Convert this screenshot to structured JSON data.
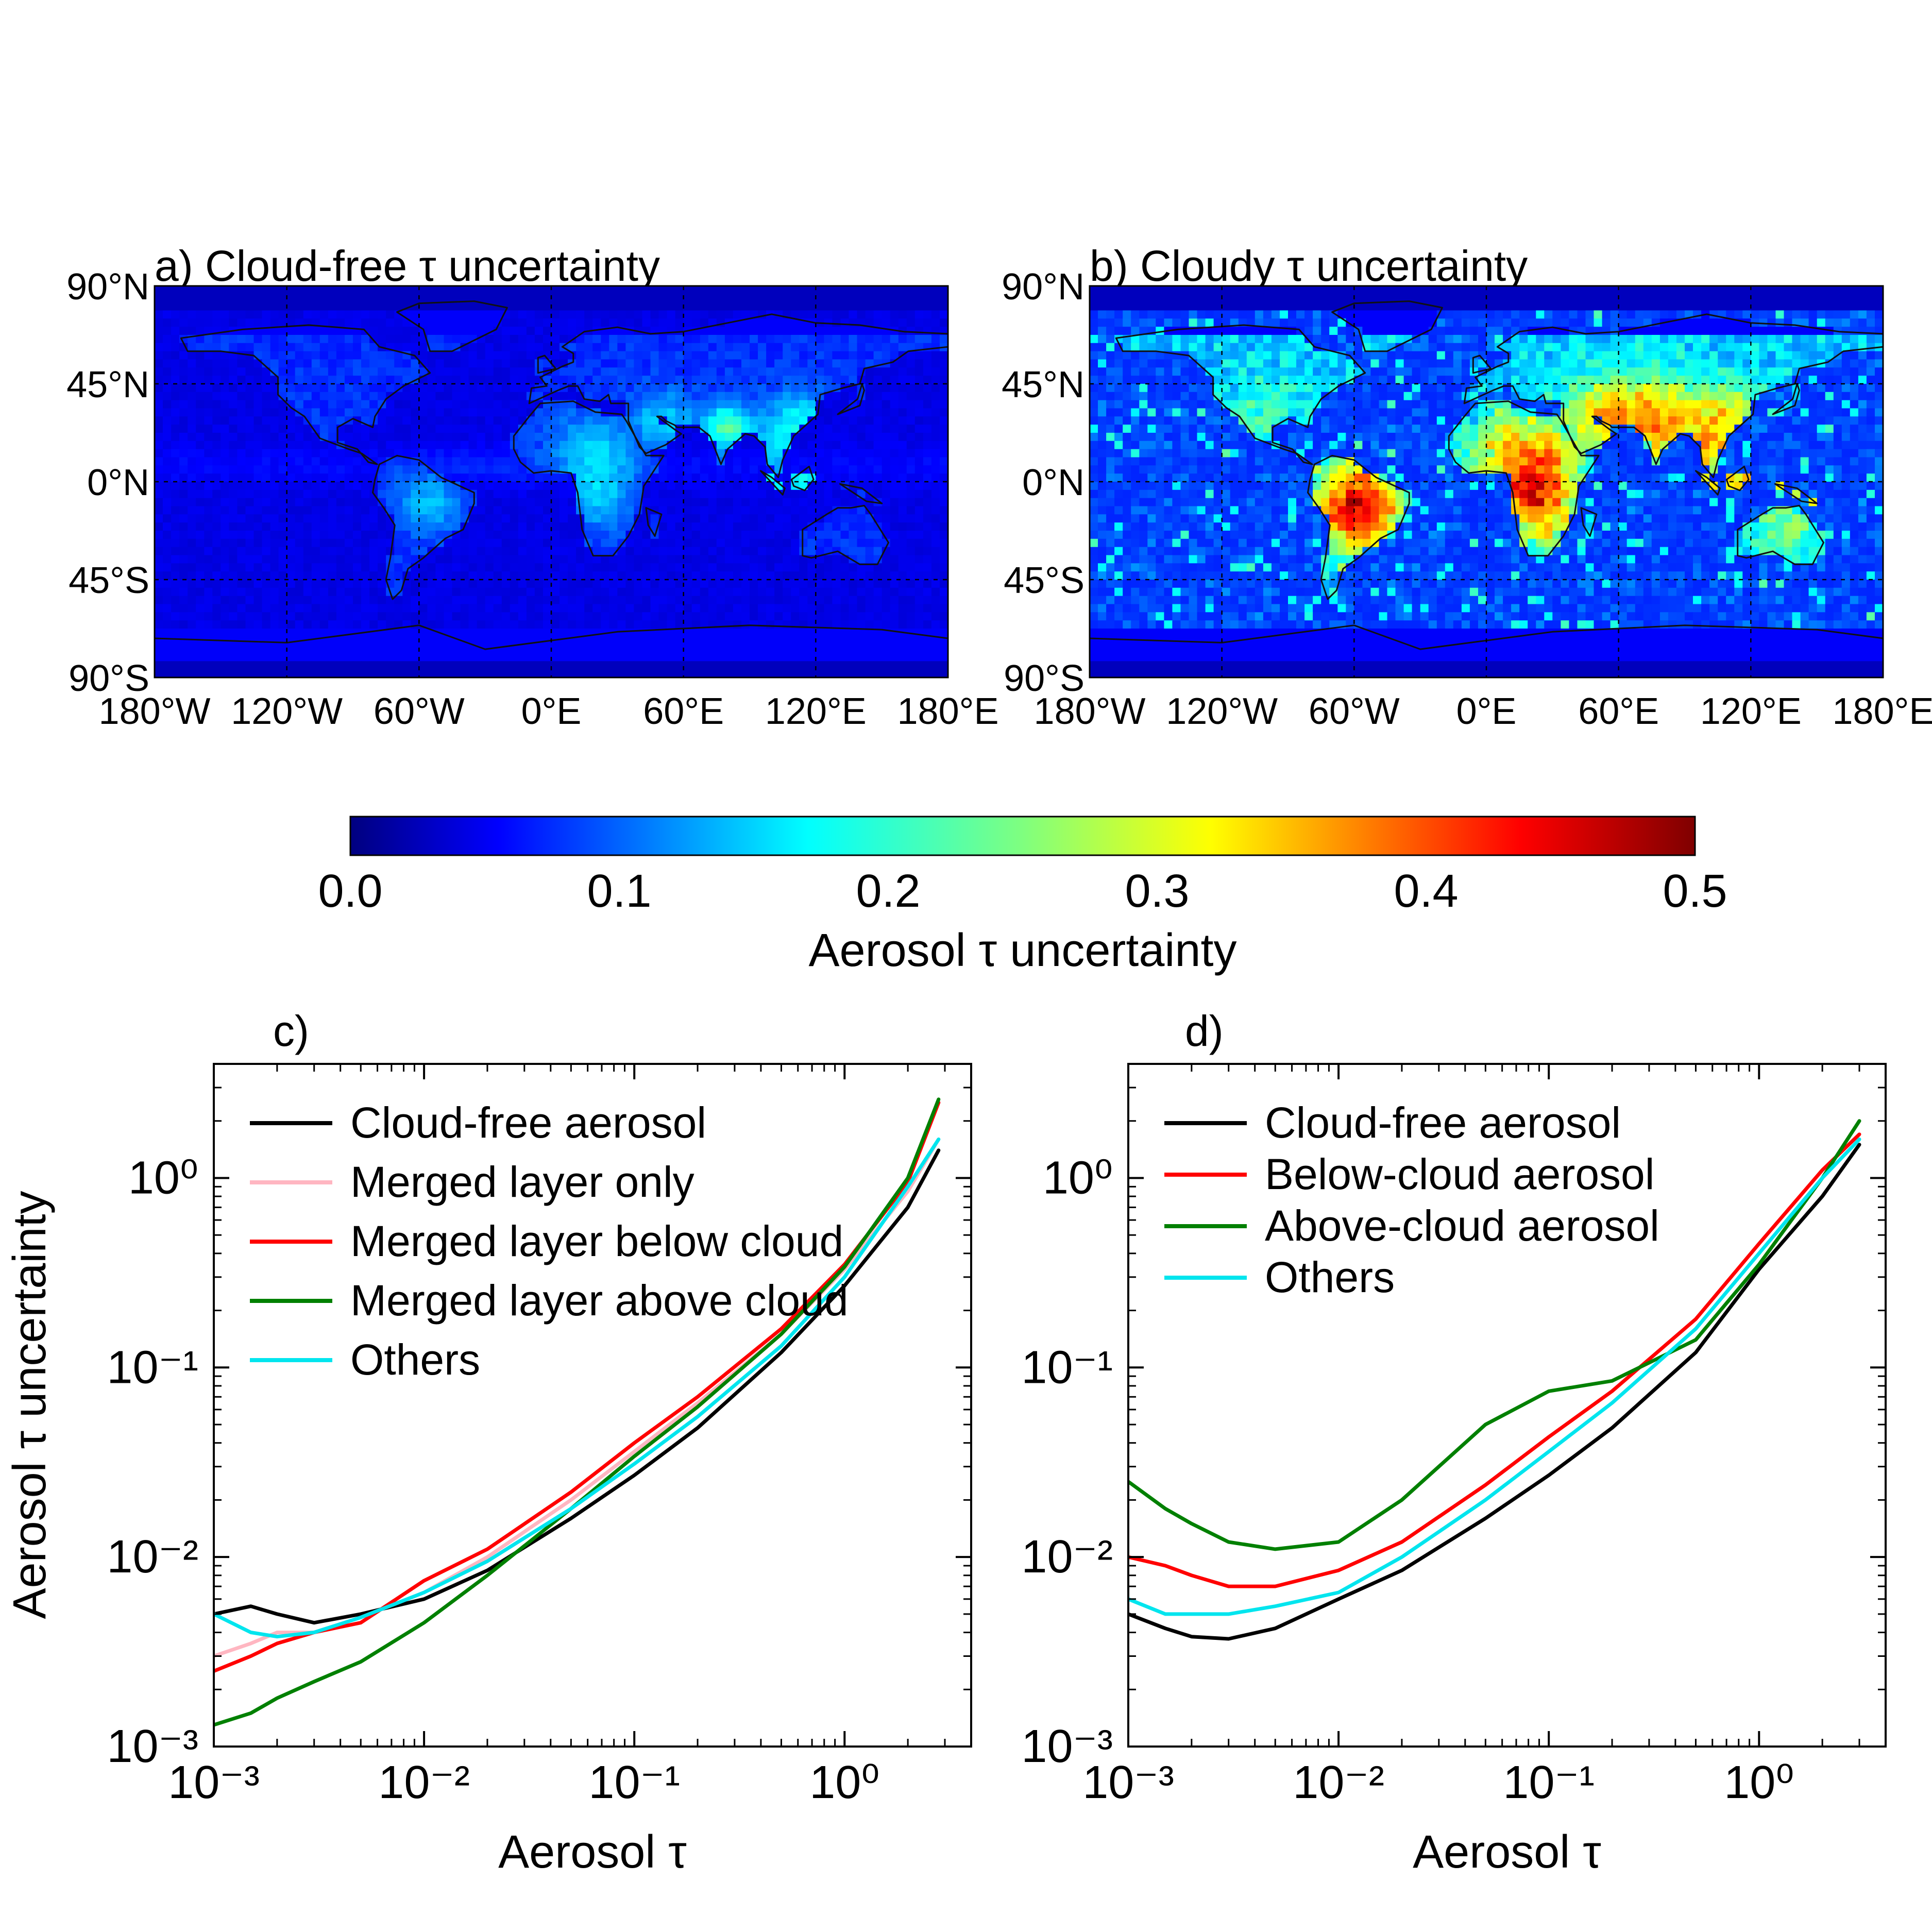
{
  "colorbar": {
    "label": "Aerosol τ uncertainty",
    "min": 0.0,
    "max": 0.5,
    "ticks": [
      "0.0",
      "0.1",
      "0.2",
      "0.3",
      "0.4",
      "0.5"
    ],
    "colormap": "jet"
  },
  "maps": [
    {
      "title": "a) Cloud-free τ uncertainty",
      "lat_labels": [
        "90°N",
        "45°N",
        "0°N",
        "45°S",
        "90°S"
      ],
      "lon_labels": [
        "180°W",
        "120°W",
        "60°W",
        "0°E",
        "60°E",
        "120°E",
        "180°E"
      ],
      "scheme": "cloud-free"
    },
    {
      "title": "b) Cloudy τ uncertainty",
      "lat_labels": [
        "90°N",
        "45°N",
        "0°N",
        "45°S",
        "90°S"
      ],
      "lon_labels": [
        "180°W",
        "120°W",
        "60°W",
        "0°E",
        "60°E",
        "120°E",
        "180°E"
      ],
      "scheme": "cloudy"
    }
  ],
  "chart_data": [
    {
      "panel": "c)",
      "type": "line",
      "xscale": "log",
      "yscale": "log",
      "xlim": [
        0.001,
        4
      ],
      "ylim": [
        0.001,
        4
      ],
      "xlabel": "Aerosol τ",
      "ylabel": "Aerosol τ uncertainty",
      "xticks": [
        "10⁻³",
        "10⁻²",
        "10⁻¹",
        "10⁰"
      ],
      "yticks": [
        "10⁻³",
        "10⁻²",
        "10⁻¹",
        "10⁰"
      ],
      "legend_position": "top-left",
      "series": [
        {
          "name": "Cloud-free aerosol",
          "color": "#000000",
          "x": [
            0.001,
            0.0015,
            0.002,
            0.003,
            0.005,
            0.01,
            0.02,
            0.05,
            0.1,
            0.2,
            0.5,
            1.0,
            2.0,
            2.8
          ],
          "y": [
            0.005,
            0.0055,
            0.005,
            0.0045,
            0.005,
            0.006,
            0.0085,
            0.016,
            0.027,
            0.048,
            0.12,
            0.27,
            0.7,
            1.4
          ]
        },
        {
          "name": "Merged layer only",
          "color": "#ffb6c1",
          "x": [
            0.001,
            0.0015,
            0.002,
            0.003,
            0.005,
            0.01,
            0.02,
            0.05,
            0.1,
            0.2,
            0.5,
            1.0,
            2.0,
            2.8
          ],
          "y": [
            0.003,
            0.0035,
            0.004,
            0.004,
            0.0048,
            0.0065,
            0.01,
            0.02,
            0.036,
            0.065,
            0.15,
            0.33,
            0.85,
            1.6
          ]
        },
        {
          "name": "Merged layer below cloud",
          "color": "#ff0000",
          "x": [
            0.001,
            0.0015,
            0.002,
            0.003,
            0.005,
            0.01,
            0.02,
            0.05,
            0.1,
            0.2,
            0.5,
            1.0,
            2.0,
            2.8
          ],
          "y": [
            0.0025,
            0.003,
            0.0035,
            0.004,
            0.0045,
            0.0075,
            0.011,
            0.022,
            0.04,
            0.07,
            0.16,
            0.35,
            0.95,
            2.5
          ]
        },
        {
          "name": "Merged layer above cloud",
          "color": "#008000",
          "x": [
            0.001,
            0.0015,
            0.002,
            0.003,
            0.005,
            0.01,
            0.02,
            0.05,
            0.1,
            0.2,
            0.5,
            1.0,
            2.0,
            2.8
          ],
          "y": [
            0.0013,
            0.0015,
            0.0018,
            0.0022,
            0.0028,
            0.0045,
            0.008,
            0.018,
            0.034,
            0.062,
            0.15,
            0.34,
            1.0,
            2.6
          ]
        },
        {
          "name": "Others",
          "color": "#00e5ee",
          "x": [
            0.001,
            0.0015,
            0.002,
            0.003,
            0.005,
            0.01,
            0.02,
            0.05,
            0.1,
            0.2,
            0.5,
            1.0,
            2.0,
            2.8
          ],
          "y": [
            0.005,
            0.004,
            0.0038,
            0.004,
            0.0048,
            0.0065,
            0.0095,
            0.018,
            0.031,
            0.055,
            0.13,
            0.3,
            0.9,
            1.6
          ]
        }
      ]
    },
    {
      "panel": "d)",
      "type": "line",
      "xscale": "log",
      "yscale": "log",
      "xlim": [
        0.001,
        4
      ],
      "ylim": [
        0.001,
        4
      ],
      "xlabel": "Aerosol τ",
      "ylabel": "",
      "xticks": [
        "10⁻³",
        "10⁻²",
        "10⁻¹",
        "10⁰"
      ],
      "yticks": [
        "10⁻³",
        "10⁻²",
        "10⁻¹",
        "10⁰"
      ],
      "legend_position": "top-left",
      "series": [
        {
          "name": "Cloud-free aerosol",
          "color": "#000000",
          "x": [
            0.001,
            0.0015,
            0.002,
            0.003,
            0.005,
            0.01,
            0.02,
            0.05,
            0.1,
            0.2,
            0.5,
            1.0,
            2.0,
            3.0
          ],
          "y": [
            0.005,
            0.0042,
            0.0038,
            0.0037,
            0.0042,
            0.006,
            0.0085,
            0.016,
            0.027,
            0.048,
            0.12,
            0.33,
            0.8,
            1.5
          ]
        },
        {
          "name": "Below-cloud aerosol",
          "color": "#ff0000",
          "x": [
            0.001,
            0.0015,
            0.002,
            0.003,
            0.005,
            0.01,
            0.02,
            0.05,
            0.1,
            0.2,
            0.5,
            1.0,
            2.0,
            3.0
          ],
          "y": [
            0.01,
            0.009,
            0.008,
            0.007,
            0.007,
            0.0085,
            0.012,
            0.024,
            0.043,
            0.075,
            0.18,
            0.45,
            1.1,
            1.7
          ]
        },
        {
          "name": "Above-cloud aerosol",
          "color": "#008000",
          "x": [
            0.001,
            0.0015,
            0.002,
            0.003,
            0.005,
            0.01,
            0.02,
            0.05,
            0.1,
            0.2,
            0.5,
            1.0,
            2.0,
            3.0
          ],
          "y": [
            0.025,
            0.018,
            0.015,
            0.012,
            0.011,
            0.012,
            0.02,
            0.05,
            0.075,
            0.085,
            0.14,
            0.35,
            1.0,
            2.0
          ]
        },
        {
          "name": "Others",
          "color": "#00e5ee",
          "x": [
            0.001,
            0.0015,
            0.002,
            0.003,
            0.005,
            0.01,
            0.02,
            0.05,
            0.1,
            0.2,
            0.5,
            1.0,
            2.0,
            3.0
          ],
          "y": [
            0.006,
            0.005,
            0.005,
            0.005,
            0.0055,
            0.0065,
            0.01,
            0.02,
            0.036,
            0.065,
            0.16,
            0.4,
            1.0,
            1.6
          ]
        }
      ]
    }
  ]
}
